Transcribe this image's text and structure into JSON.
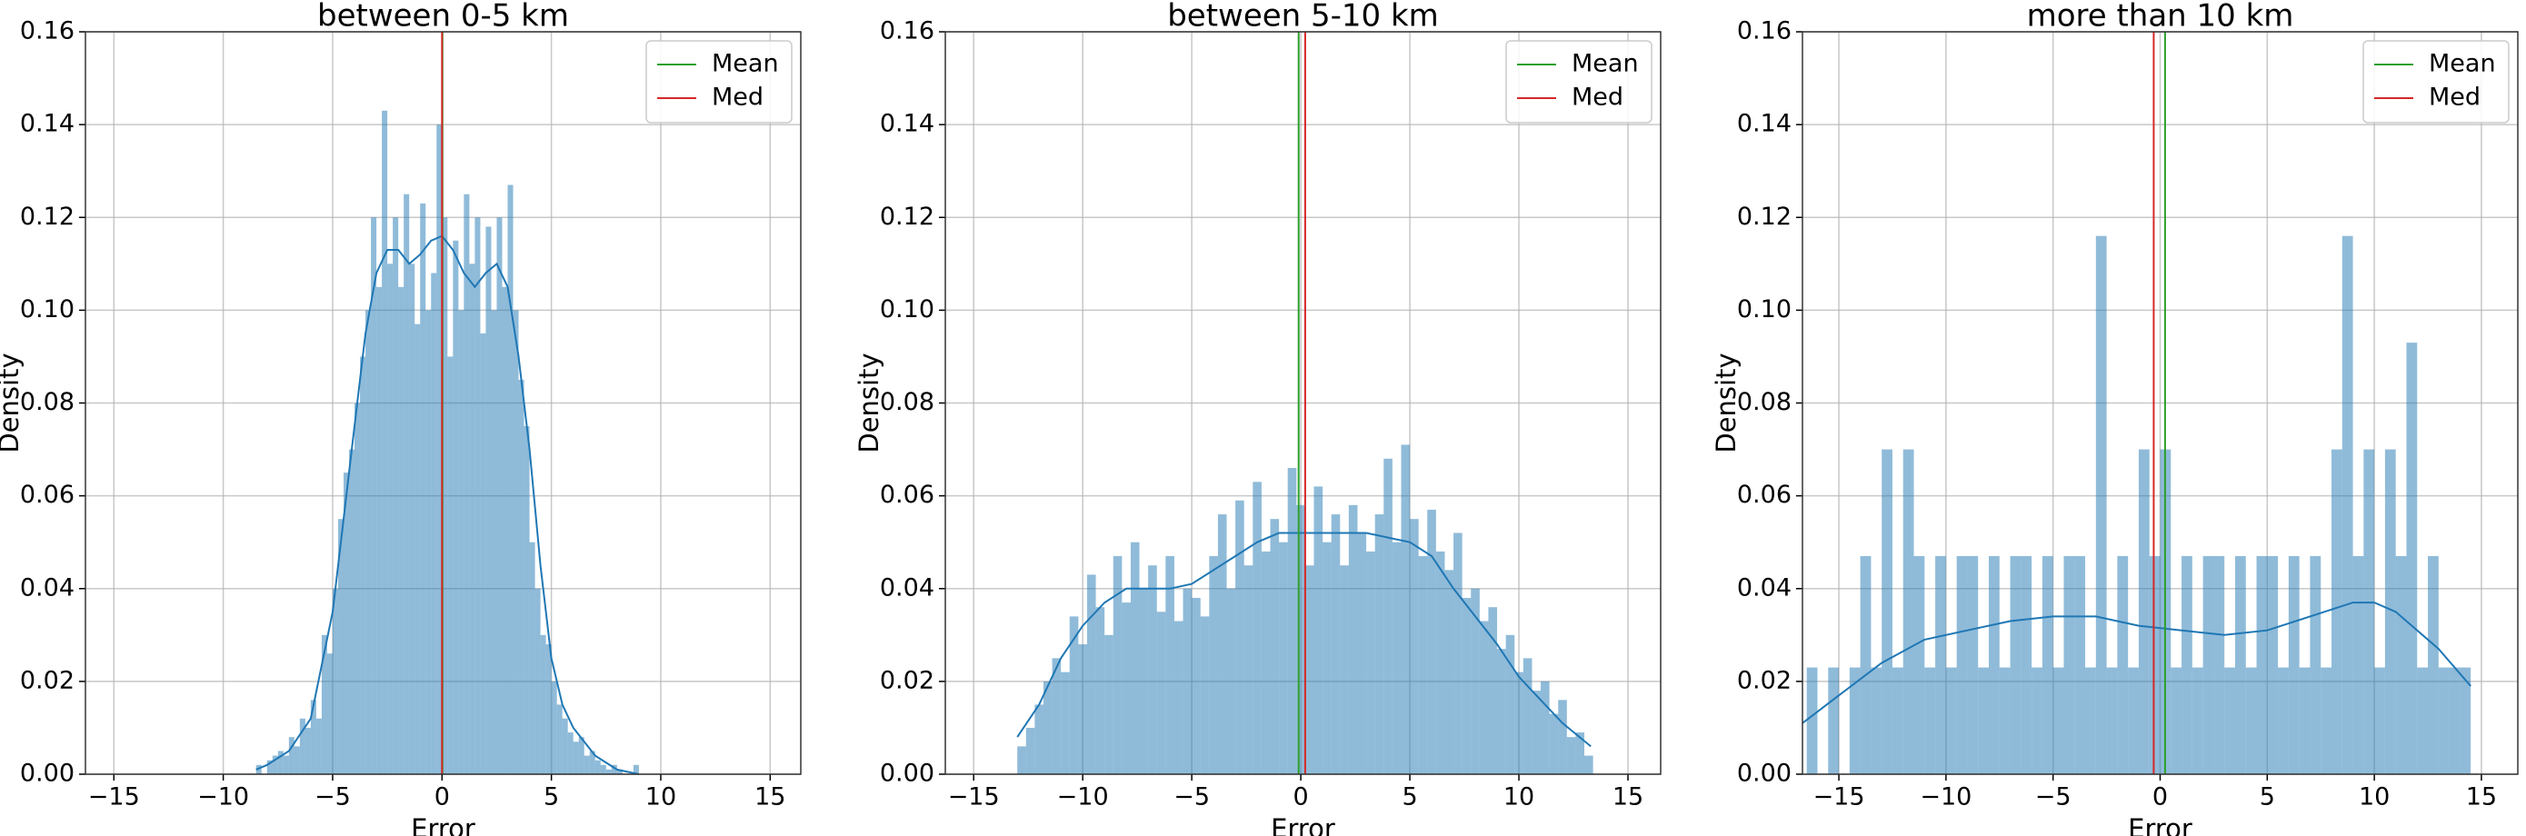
{
  "chart_data": [
    {
      "type": "histogram",
      "title": "between 0-5 km",
      "xlabel": "Error",
      "ylabel": "Density",
      "color": "#1f77b4",
      "grid": true,
      "legend": "upper right",
      "bins": [
        -8.5,
        -8.25,
        -8,
        -7.75,
        -7.5,
        -7.25,
        -7,
        -6.75,
        -6.5,
        -6.25,
        -6,
        -5.75,
        -5.5,
        -5.25,
        -5,
        -4.75,
        -4.5,
        -4.25,
        -4,
        -3.75,
        -3.5,
        -3.25,
        -3,
        -2.75,
        -2.5,
        -2.25,
        -2,
        -1.75,
        -1.5,
        -1.25,
        -1,
        -0.75,
        -0.5,
        -0.25,
        0,
        0.25,
        0.5,
        0.75,
        1,
        1.25,
        1.5,
        1.75,
        2,
        2.25,
        2.5,
        2.75,
        3,
        3.25,
        3.5,
        3.75,
        4,
        4.25,
        4.5,
        4.75,
        5,
        5.25,
        5.5,
        5.75,
        6,
        6.25,
        6.5,
        6.75,
        7,
        7.25,
        7.5,
        7.75,
        8,
        8.25,
        8.5,
        8.75,
        9
      ],
      "values": [
        0.002,
        0,
        0.003,
        0.004,
        0.005,
        0.004,
        0.008,
        0.006,
        0.012,
        0.01,
        0.016,
        0.012,
        0.03,
        0.026,
        0.04,
        0.055,
        0.065,
        0.07,
        0.08,
        0.09,
        0.1,
        0.12,
        0.105,
        0.143,
        0.11,
        0.12,
        0.105,
        0.125,
        0.11,
        0.097,
        0.123,
        0.1,
        0.108,
        0.14,
        0.12,
        0.09,
        0.115,
        0.1,
        0.125,
        0.11,
        0.12,
        0.095,
        0.118,
        0.1,
        0.12,
        0.105,
        0.127,
        0.1,
        0.085,
        0.075,
        0.05,
        0.04,
        0.03,
        0.028,
        0.02,
        0.015,
        0.012,
        0.009,
        0.007,
        0.008,
        0.004,
        0.005,
        0.003,
        0.002,
        0.001,
        0.002,
        0.001,
        0,
        0,
        0.002
      ],
      "kde": {
        "x": [
          -8.5,
          -8,
          -7,
          -6,
          -5,
          -4.5,
          -4,
          -3.5,
          -3,
          -2.5,
          -2,
          -1.5,
          -1,
          -0.5,
          0,
          0.5,
          1,
          1.5,
          2,
          2.5,
          3,
          3.5,
          4,
          4.5,
          5,
          5.5,
          6,
          7,
          8,
          9
        ],
        "values": [
          0.001,
          0.002,
          0.005,
          0.012,
          0.035,
          0.055,
          0.075,
          0.095,
          0.108,
          0.113,
          0.113,
          0.11,
          0.112,
          0.115,
          0.116,
          0.113,
          0.108,
          0.105,
          0.108,
          0.11,
          0.105,
          0.09,
          0.07,
          0.045,
          0.025,
          0.015,
          0.01,
          0.004,
          0.001,
          0
        ]
      },
      "lines": [
        {
          "name": "Mean",
          "color": "#2ca02c",
          "value": 0.02
        },
        {
          "name": "Med",
          "color": "#d62728",
          "value": 0
        }
      ],
      "xlim": [
        -16.3,
        16.4
      ],
      "ylim": [
        0,
        0.16
      ],
      "xticks": [
        {
          "value": -15,
          "label": "−15"
        },
        {
          "value": -10,
          "label": "−10"
        },
        {
          "value": -5,
          "label": "−5"
        },
        0,
        5,
        10,
        15
      ],
      "yticks": [
        {
          "value": 0,
          "label": "0.00"
        },
        {
          "value": 0.02,
          "label": "0.02"
        },
        {
          "value": 0.04,
          "label": "0.04"
        },
        {
          "value": 0.06,
          "label": "0.06"
        },
        {
          "value": 0.08,
          "label": "0.08"
        },
        {
          "value": 0.1,
          "label": "0.10"
        },
        {
          "value": 0.12,
          "label": "0.12"
        },
        {
          "value": 0.14,
          "label": "0.14"
        },
        {
          "value": 0.16,
          "label": "0.16"
        }
      ]
    },
    {
      "type": "histogram",
      "title": "between 5-10 km",
      "xlabel": "Error",
      "ylabel": "Density",
      "color": "#1f77b4",
      "grid": true,
      "legend": "upper right",
      "bins": [
        -13,
        -12.6,
        -12.2,
        -11.8,
        -11.4,
        -11,
        -10.6,
        -10.2,
        -9.8,
        -9.4,
        -9,
        -8.6,
        -8.2,
        -7.8,
        -7.4,
        -7,
        -6.6,
        -6.2,
        -5.8,
        -5.4,
        -5,
        -4.6,
        -4.2,
        -3.8,
        -3.4,
        -3,
        -2.6,
        -2.2,
        -1.8,
        -1.4,
        -1,
        -0.6,
        -0.2,
        0.2,
        0.6,
        1,
        1.4,
        1.8,
        2.2,
        2.6,
        3,
        3.4,
        3.8,
        4.2,
        4.6,
        5,
        5.4,
        5.8,
        6.2,
        6.6,
        7,
        7.4,
        7.8,
        8.2,
        8.6,
        9,
        9.4,
        9.8,
        10.2,
        10.6,
        11,
        11.4,
        11.8,
        12.2,
        12.6,
        13,
        13.4
      ],
      "values": [
        0.006,
        0.01,
        0.015,
        0.02,
        0.025,
        0.022,
        0.034,
        0.028,
        0.043,
        0.036,
        0.03,
        0.047,
        0.037,
        0.05,
        0.04,
        0.045,
        0.035,
        0.047,
        0.033,
        0.04,
        0.038,
        0.034,
        0.047,
        0.056,
        0.04,
        0.059,
        0.045,
        0.063,
        0.048,
        0.055,
        0.05,
        0.066,
        0.058,
        0.045,
        0.062,
        0.05,
        0.056,
        0.045,
        0.058,
        0.052,
        0.048,
        0.056,
        0.068,
        0.05,
        0.071,
        0.055,
        0.047,
        0.057,
        0.048,
        0.044,
        0.052,
        0.038,
        0.04,
        0.033,
        0.036,
        0.027,
        0.03,
        0.022,
        0.025,
        0.018,
        0.02,
        0.013,
        0.016,
        0.008,
        0.009,
        0.004
      ],
      "kde": {
        "x": [
          -13,
          -12,
          -11,
          -10,
          -9,
          -8,
          -7,
          -6,
          -5,
          -4,
          -3,
          -2,
          -1,
          0,
          1,
          2,
          3,
          4,
          5,
          6,
          7,
          8,
          9,
          10,
          11,
          12,
          13.3
        ],
        "values": [
          0.008,
          0.015,
          0.025,
          0.032,
          0.037,
          0.04,
          0.04,
          0.04,
          0.041,
          0.044,
          0.047,
          0.05,
          0.052,
          0.052,
          0.052,
          0.052,
          0.052,
          0.051,
          0.05,
          0.047,
          0.04,
          0.034,
          0.028,
          0.021,
          0.016,
          0.011,
          0.006
        ]
      },
      "lines": [
        {
          "name": "Mean",
          "color": "#2ca02c",
          "value": -0.1
        },
        {
          "name": "Med",
          "color": "#d62728",
          "value": 0.2
        }
      ],
      "xlim": [
        -16.3,
        16.5
      ],
      "ylim": [
        0,
        0.16
      ],
      "xticks": [
        {
          "value": -15,
          "label": "−15"
        },
        {
          "value": -10,
          "label": "−10"
        },
        {
          "value": -5,
          "label": "−5"
        },
        0,
        5,
        10,
        15
      ],
      "yticks": [
        {
          "value": 0,
          "label": "0.00"
        },
        {
          "value": 0.02,
          "label": "0.02"
        },
        {
          "value": 0.04,
          "label": "0.04"
        },
        {
          "value": 0.06,
          "label": "0.06"
        },
        {
          "value": 0.08,
          "label": "0.08"
        },
        {
          "value": 0.1,
          "label": "0.10"
        },
        {
          "value": 0.12,
          "label": "0.12"
        },
        {
          "value": 0.14,
          "label": "0.14"
        },
        {
          "value": 0.16,
          "label": "0.16"
        }
      ]
    },
    {
      "type": "histogram",
      "title": "more than 10 km",
      "xlabel": "Error",
      "ylabel": "Density",
      "color": "#1f77b4",
      "grid": true,
      "legend": "upper right",
      "bins": [
        -16.5,
        -16,
        -15.5,
        -15,
        -14.5,
        -14,
        -13.5,
        -13,
        -12.5,
        -12,
        -11.5,
        -11,
        -10.5,
        -10,
        -9.5,
        -9,
        -8.5,
        -8,
        -7.5,
        -7,
        -6.5,
        -6,
        -5.5,
        -5,
        -4.5,
        -4,
        -3.5,
        -3,
        -2.5,
        -2,
        -1.5,
        -1,
        -0.5,
        0,
        0.5,
        1,
        1.5,
        2,
        2.5,
        3,
        3.5,
        4,
        4.5,
        5,
        5.5,
        6,
        6.5,
        7,
        7.5,
        8,
        8.5,
        9,
        9.5,
        10,
        10.5,
        11,
        11.5,
        12,
        12.5,
        13,
        13.5,
        14,
        14.5
      ],
      "values": [
        0.023,
        0,
        0.023,
        0,
        0.023,
        0.047,
        0.023,
        0.07,
        0.023,
        0.07,
        0.047,
        0.023,
        0.047,
        0.023,
        0.047,
        0.047,
        0.023,
        0.047,
        0.023,
        0.047,
        0.047,
        0.023,
        0.047,
        0.023,
        0.047,
        0.047,
        0.023,
        0.116,
        0.023,
        0.047,
        0.023,
        0.07,
        0.047,
        0.07,
        0.023,
        0.047,
        0.023,
        0.047,
        0.047,
        0.023,
        0.047,
        0.023,
        0.047,
        0.047,
        0.023,
        0.047,
        0.023,
        0.047,
        0.023,
        0.07,
        0.116,
        0.047,
        0.07,
        0.023,
        0.07,
        0.047,
        0.093,
        0.023,
        0.047,
        0.023,
        0.023,
        0.023
      ],
      "kde": {
        "x": [
          -16.7,
          -15,
          -13,
          -11,
          -9,
          -7,
          -5,
          -3,
          -1,
          1,
          3,
          5,
          7,
          9,
          10,
          11,
          12,
          13,
          14.5
        ],
        "values": [
          0.011,
          0.017,
          0.024,
          0.029,
          0.031,
          0.033,
          0.034,
          0.034,
          0.032,
          0.031,
          0.03,
          0.031,
          0.034,
          0.037,
          0.037,
          0.035,
          0.031,
          0.027,
          0.019
        ]
      },
      "lines": [
        {
          "name": "Mean",
          "color": "#2ca02c",
          "value": 0.23
        },
        {
          "name": "Med",
          "color": "#d62728",
          "value": -0.3
        }
      ],
      "xlim": [
        -16.7,
        16.7
      ],
      "ylim": [
        0,
        0.16
      ],
      "xticks": [
        {
          "value": -15,
          "label": "−15"
        },
        {
          "value": -10,
          "label": "−10"
        },
        {
          "value": -5,
          "label": "−5"
        },
        0,
        5,
        10,
        15
      ],
      "yticks": [
        {
          "value": 0,
          "label": "0.00"
        },
        {
          "value": 0.02,
          "label": "0.02"
        },
        {
          "value": 0.04,
          "label": "0.04"
        },
        {
          "value": 0.06,
          "label": "0.06"
        },
        {
          "value": 0.08,
          "label": "0.08"
        },
        {
          "value": 0.1,
          "label": "0.10"
        },
        {
          "value": 0.12,
          "label": "0.12"
        },
        {
          "value": 0.14,
          "label": "0.14"
        },
        {
          "value": 0.16,
          "label": "0.16"
        }
      ]
    }
  ]
}
